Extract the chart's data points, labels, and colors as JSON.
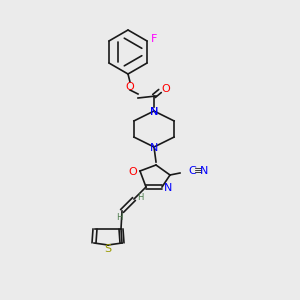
{
  "background_color": "#ebebeb",
  "bond_color": "#1a1a1a",
  "atom_colors": {
    "O": "#ff0000",
    "N": "#0000ff",
    "S": "#999900",
    "F": "#ff00ff",
    "C": "#1a1a1a",
    "CN": "#0000ff"
  },
  "font_size": 7.5,
  "line_width": 1.2
}
